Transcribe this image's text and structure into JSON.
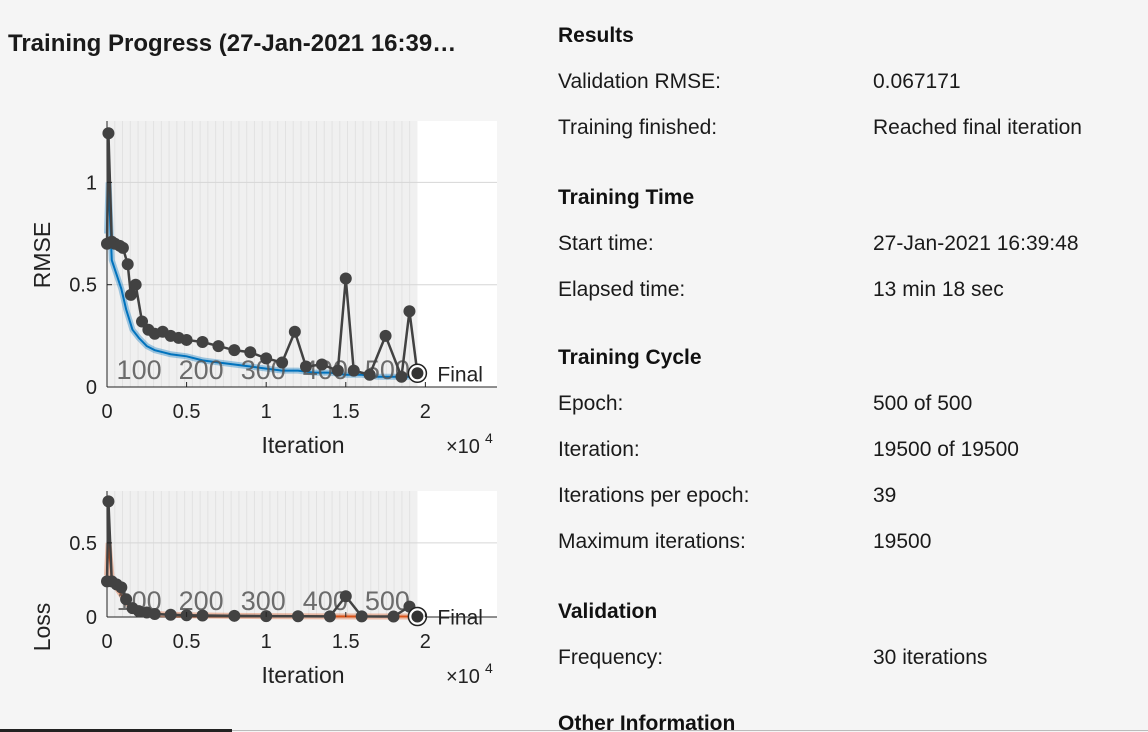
{
  "window": {
    "title": "Training Progress (27-Jan-2021 16:39…"
  },
  "results": {
    "sections": [
      {
        "title": "Results",
        "rows": [
          {
            "label": "Validation RMSE:",
            "value": "0.067171"
          },
          {
            "label": "Training finished:",
            "value": "Reached final iteration"
          }
        ]
      },
      {
        "title": "Training Time",
        "rows": [
          {
            "label": "Start time:",
            "value": "27-Jan-2021 16:39:48"
          },
          {
            "label": "Elapsed time:",
            "value": "13 min 18 sec"
          }
        ]
      },
      {
        "title": "Training Cycle",
        "rows": [
          {
            "label": "Epoch:",
            "value": "500 of 500"
          },
          {
            "label": "Iteration:",
            "value": "19500 of 19500"
          },
          {
            "label": "Iterations per epoch:",
            "value": "39"
          },
          {
            "label": "Maximum iterations:",
            "value": "19500"
          }
        ]
      },
      {
        "title": "Validation",
        "rows": [
          {
            "label": "Frequency:",
            "value": "30 iterations"
          }
        ]
      },
      {
        "title": "Other Information",
        "rows": []
      }
    ]
  },
  "chart_data": [
    {
      "type": "line",
      "ylabel": "RMSE",
      "xlabel": "Iteration",
      "x_exponent_label": "×10",
      "x_exponent_power": "4",
      "xlim": [
        0,
        24500
      ],
      "ylim": [
        0,
        1.3
      ],
      "xticks": [
        0,
        5000,
        10000,
        15000,
        20000
      ],
      "xtick_labels": [
        "0",
        "0.5",
        "1",
        "1.5",
        "2"
      ],
      "yticks": [
        0,
        0.5,
        1
      ],
      "ytick_labels": [
        "0",
        "0.5",
        "1"
      ],
      "grid": true,
      "epoch_labels": [
        "100",
        "200",
        "300",
        "400",
        "500"
      ],
      "final_label": "Final",
      "final_point": {
        "x": 19500,
        "y": 0.067
      },
      "series": [
        {
          "role": "training",
          "color": "#0072bd",
          "x": [
            0,
            100,
            300,
            600,
            900,
            1200,
            1600,
            2000,
            2500,
            3000,
            3500,
            4000,
            5000,
            6000,
            7000,
            8000,
            9000,
            10000,
            11000,
            12000,
            13000,
            14000,
            15000,
            16000,
            17000,
            18000,
            19000,
            19500
          ],
          "y": [
            0.75,
            1.0,
            0.62,
            0.55,
            0.48,
            0.38,
            0.28,
            0.24,
            0.2,
            0.18,
            0.17,
            0.16,
            0.15,
            0.13,
            0.12,
            0.11,
            0.1,
            0.09,
            0.08,
            0.08,
            0.07,
            0.07,
            0.06,
            0.06,
            0.05,
            0.05,
            0.05,
            0.05
          ]
        },
        {
          "role": "validation",
          "color": "#424242",
          "x": [
            0,
            90,
            300,
            500,
            800,
            1000,
            1300,
            1500,
            1800,
            2200,
            2600,
            3000,
            3500,
            4000,
            4500,
            5000,
            6000,
            7000,
            8000,
            9000,
            10000,
            11000,
            11800,
            12500,
            13500,
            14500,
            15000,
            15500,
            16500,
            17500,
            18500,
            19000,
            19500
          ],
          "y": [
            0.7,
            1.24,
            0.71,
            0.7,
            0.69,
            0.68,
            0.6,
            0.45,
            0.5,
            0.32,
            0.28,
            0.26,
            0.27,
            0.25,
            0.24,
            0.23,
            0.22,
            0.2,
            0.18,
            0.17,
            0.14,
            0.12,
            0.27,
            0.1,
            0.11,
            0.08,
            0.53,
            0.08,
            0.06,
            0.25,
            0.05,
            0.37,
            0.067
          ]
        }
      ]
    },
    {
      "type": "line",
      "ylabel": "Loss",
      "xlabel": "Iteration",
      "x_exponent_label": "×10",
      "x_exponent_power": "4",
      "xlim": [
        0,
        24500
      ],
      "ylim": [
        0,
        0.85
      ],
      "xticks": [
        0,
        5000,
        10000,
        15000,
        20000
      ],
      "xtick_labels": [
        "0",
        "0.5",
        "1",
        "1.5",
        "2"
      ],
      "yticks": [
        0,
        0.5
      ],
      "ytick_labels": [
        "0",
        "0.5"
      ],
      "grid": true,
      "epoch_labels": [
        "100",
        "200",
        "300",
        "400",
        "500"
      ],
      "final_label": "Final",
      "final_point": {
        "x": 19500,
        "y": 0.003
      },
      "series": [
        {
          "role": "training",
          "color": "#d95319",
          "x": [
            0,
            100,
            300,
            600,
            900,
            1200,
            1600,
            2000,
            2500,
            3000,
            4000,
            5000,
            6000,
            8000,
            10000,
            12000,
            14000,
            16000,
            18000,
            19500
          ],
          "y": [
            0.28,
            0.5,
            0.25,
            0.2,
            0.15,
            0.1,
            0.06,
            0.04,
            0.03,
            0.02,
            0.015,
            0.012,
            0.01,
            0.008,
            0.006,
            0.005,
            0.004,
            0.003,
            0.003,
            0.003
          ]
        },
        {
          "role": "validation",
          "color": "#424242",
          "x": [
            0,
            90,
            300,
            600,
            900,
            1200,
            1600,
            2000,
            2500,
            3000,
            4000,
            5000,
            6000,
            8000,
            10000,
            12000,
            14000,
            15000,
            16000,
            18000,
            19000,
            19500
          ],
          "y": [
            0.24,
            0.78,
            0.24,
            0.22,
            0.2,
            0.12,
            0.06,
            0.04,
            0.03,
            0.02,
            0.015,
            0.012,
            0.01,
            0.008,
            0.006,
            0.005,
            0.004,
            0.14,
            0.004,
            0.003,
            0.07,
            0.003
          ]
        }
      ]
    }
  ]
}
